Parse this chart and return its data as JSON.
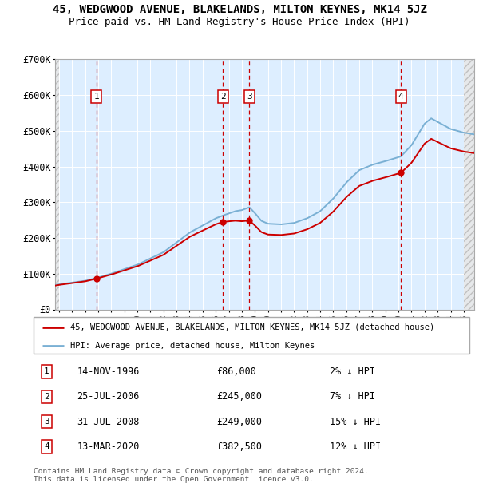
{
  "title": "45, WEDGWOOD AVENUE, BLAKELANDS, MILTON KEYNES, MK14 5JZ",
  "subtitle": "Price paid vs. HM Land Registry's House Price Index (HPI)",
  "ylim": [
    0,
    700000
  ],
  "yticks": [
    0,
    100000,
    200000,
    300000,
    400000,
    500000,
    600000,
    700000
  ],
  "ytick_labels": [
    "£0",
    "£100K",
    "£200K",
    "£300K",
    "£400K",
    "£500K",
    "£600K",
    "£700K"
  ],
  "xlim_start": 1993.7,
  "xlim_end": 2025.8,
  "sales": [
    {
      "num": 1,
      "year": 1996.87,
      "price": 86000,
      "date": "14-NOV-1996",
      "hpi_pct": "2%"
    },
    {
      "num": 2,
      "year": 2006.56,
      "price": 245000,
      "date": "25-JUL-2006",
      "hpi_pct": "7%"
    },
    {
      "num": 3,
      "year": 2008.58,
      "price": 249000,
      "date": "31-JUL-2008",
      "hpi_pct": "15%"
    },
    {
      "num": 4,
      "year": 2020.19,
      "price": 382500,
      "date": "13-MAR-2020",
      "hpi_pct": "12%"
    }
  ],
  "hpi_anchors": [
    [
      1993.7,
      68000
    ],
    [
      1994.0,
      70000
    ],
    [
      1996.0,
      80000
    ],
    [
      1996.87,
      87720
    ],
    [
      1998.0,
      100000
    ],
    [
      2000.0,
      125000
    ],
    [
      2002.0,
      160000
    ],
    [
      2004.0,
      215000
    ],
    [
      2006.0,
      255000
    ],
    [
      2006.56,
      263000
    ],
    [
      2007.5,
      275000
    ],
    [
      2008.0,
      278000
    ],
    [
      2008.58,
      286000
    ],
    [
      2009.0,
      270000
    ],
    [
      2009.5,
      248000
    ],
    [
      2010.0,
      240000
    ],
    [
      2011.0,
      238000
    ],
    [
      2012.0,
      242000
    ],
    [
      2013.0,
      255000
    ],
    [
      2014.0,
      275000
    ],
    [
      2015.0,
      310000
    ],
    [
      2016.0,
      355000
    ],
    [
      2017.0,
      390000
    ],
    [
      2018.0,
      405000
    ],
    [
      2019.0,
      415000
    ],
    [
      2020.19,
      428400
    ],
    [
      2021.0,
      460000
    ],
    [
      2022.0,
      520000
    ],
    [
      2022.5,
      535000
    ],
    [
      2023.0,
      525000
    ],
    [
      2024.0,
      505000
    ],
    [
      2025.0,
      495000
    ],
    [
      2025.8,
      490000
    ]
  ],
  "line_color_red": "#cc0000",
  "line_color_blue": "#7ab0d4",
  "bg_color": "#ddeeff",
  "vline_color": "#cc0000",
  "marker_color": "#cc0000",
  "legend_label_red": "45, WEDGWOOD AVENUE, BLAKELANDS, MILTON KEYNES, MK14 5JZ (detached house)",
  "legend_label_blue": "HPI: Average price, detached house, Milton Keynes",
  "footer": "Contains HM Land Registry data © Crown copyright and database right 2024.\nThis data is licensed under the Open Government Licence v3.0."
}
